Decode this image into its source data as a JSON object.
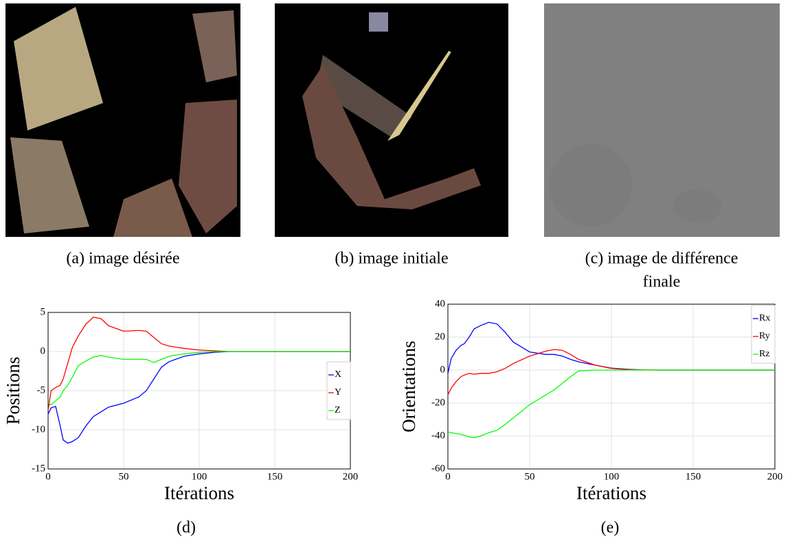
{
  "captions": [
    "(a) image désirée",
    "(b) image initiale",
    "(c) image de différence",
    "finale",
    "(d)",
    "(e)"
  ],
  "chart_data": [
    {
      "type": "line",
      "xlabel": "Itérations",
      "ylabel": "Positions",
      "x": [
        0,
        2,
        5,
        8,
        10,
        13,
        16,
        20,
        25,
        30,
        35,
        40,
        50,
        60,
        65,
        70,
        75,
        80,
        90,
        100,
        110,
        120,
        130,
        150,
        200
      ],
      "series": [
        {
          "name": "X",
          "color": "#0000ff",
          "values": [
            -8,
            -7.2,
            -7,
            -9.5,
            -11.3,
            -11.7,
            -11.5,
            -11,
            -9.5,
            -8.3,
            -7.7,
            -7.1,
            -6.6,
            -5.8,
            -5,
            -3.5,
            -2,
            -1.3,
            -0.6,
            -0.3,
            -0.1,
            0,
            0,
            0,
            0
          ]
        },
        {
          "name": "Y",
          "color": "#ff0000",
          "values": [
            -7.5,
            -5,
            -4.6,
            -4.3,
            -3.5,
            -1.5,
            0.5,
            2,
            3.5,
            4.4,
            4.2,
            3.3,
            2.6,
            2.7,
            2.6,
            1.8,
            1,
            0.7,
            0.4,
            0.2,
            0.1,
            0,
            0,
            0,
            0
          ]
        },
        {
          "name": "Z",
          "color": "#00ff00",
          "values": [
            -6.5,
            -6.8,
            -6.3,
            -5.8,
            -5,
            -4.3,
            -3.3,
            -1.8,
            -1.2,
            -0.7,
            -0.5,
            -0.7,
            -1,
            -1,
            -1,
            -1.4,
            -1,
            -0.6,
            -0.3,
            -0.1,
            0,
            0,
            0,
            0,
            0
          ]
        }
      ],
      "xlim": [
        0,
        200
      ],
      "xticks": [
        0,
        50,
        100,
        150,
        200
      ],
      "ylim": [
        -15,
        5
      ],
      "yticks": [
        -15,
        -10,
        -5,
        0,
        5
      ],
      "grid": true,
      "legend": "right"
    },
    {
      "type": "line",
      "xlabel": "Itérations",
      "ylabel": "Orientations",
      "x": [
        0,
        2,
        5,
        8,
        10,
        13,
        16,
        20,
        25,
        30,
        35,
        40,
        50,
        60,
        65,
        70,
        75,
        80,
        90,
        100,
        110,
        120,
        130,
        150,
        200
      ],
      "series": [
        {
          "name": "Rx",
          "color": "#0000ff",
          "values": [
            -2,
            7,
            12,
            15,
            16,
            20,
            25,
            27,
            29,
            28,
            23,
            17,
            11,
            9.5,
            9.5,
            8.5,
            6.5,
            5,
            3,
            1.2,
            0.5,
            0.1,
            0,
            0,
            0
          ]
        },
        {
          "name": "Ry",
          "color": "#ff0000",
          "values": [
            -15,
            -11,
            -7,
            -4,
            -3,
            -2,
            -2.5,
            -2,
            -2,
            -1,
            1,
            4,
            8.5,
            11.5,
            12.5,
            12,
            9.5,
            6.5,
            3,
            1,
            0.3,
            0.1,
            0,
            0,
            0
          ]
        },
        {
          "name": "Rz",
          "color": "#00ff00",
          "values": [
            -37.5,
            -38,
            -38.5,
            -39,
            -39.5,
            -40.5,
            -41,
            -40,
            -38,
            -36.5,
            -33,
            -29,
            -21,
            -15,
            -12,
            -8,
            -4,
            -0.5,
            0,
            0,
            0,
            0,
            0,
            0,
            0
          ]
        }
      ],
      "xlim": [
        0,
        200
      ],
      "xticks": [
        0,
        50,
        100,
        150,
        200
      ],
      "ylim": [
        -60,
        40
      ],
      "yticks": [
        -60,
        -40,
        -20,
        0,
        20,
        40
      ],
      "grid": true,
      "legend": "upper right"
    }
  ]
}
